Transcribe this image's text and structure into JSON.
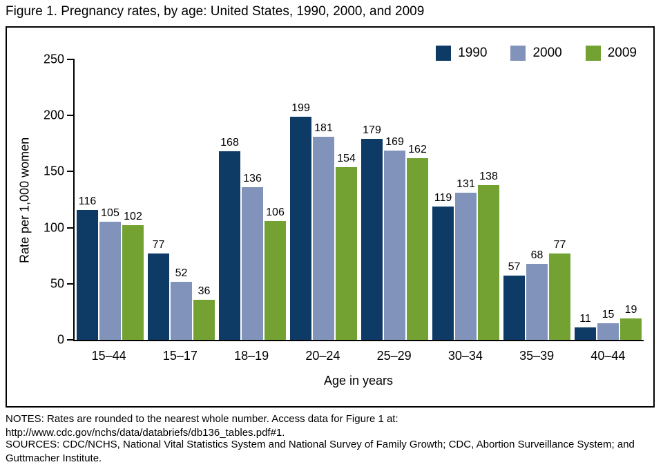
{
  "title": "Figure 1. Pregnancy rates, by age: United States, 1990, 2000, and 2009",
  "chart_data": {
    "type": "bar",
    "categories": [
      "15–44",
      "15–17",
      "18–19",
      "20–24",
      "25–29",
      "30–34",
      "35–39",
      "40–44"
    ],
    "series": [
      {
        "name": "1990",
        "color": "#0e3a66",
        "values": [
          116,
          77,
          168,
          199,
          179,
          119,
          57,
          11
        ]
      },
      {
        "name": "2000",
        "color": "#8193ba",
        "values": [
          105,
          52,
          136,
          181,
          169,
          131,
          68,
          15
        ]
      },
      {
        "name": "2009",
        "color": "#73a233",
        "values": [
          102,
          36,
          106,
          154,
          162,
          138,
          77,
          19
        ]
      }
    ],
    "xlabel": "Age in years",
    "ylabel": "Rate per 1,000 women",
    "ylim": [
      0,
      250
    ],
    "yticks": [
      0,
      50,
      100,
      150,
      200,
      250
    ],
    "grid": false,
    "legend_position": "top-right",
    "value_labels": true
  },
  "notes": {
    "notes_line": "NOTES: Rates are rounded to the nearest whole number. Access data for Figure 1 at: http://www.cdc.gov/nchs/data/databriefs/db136_tables.pdf#1.",
    "sources_line": "SOURCES: CDC/NCHS, National Vital Statistics System and National Survey of Family Growth; CDC, Abortion Surveillance System; and Guttmacher Institute."
  }
}
